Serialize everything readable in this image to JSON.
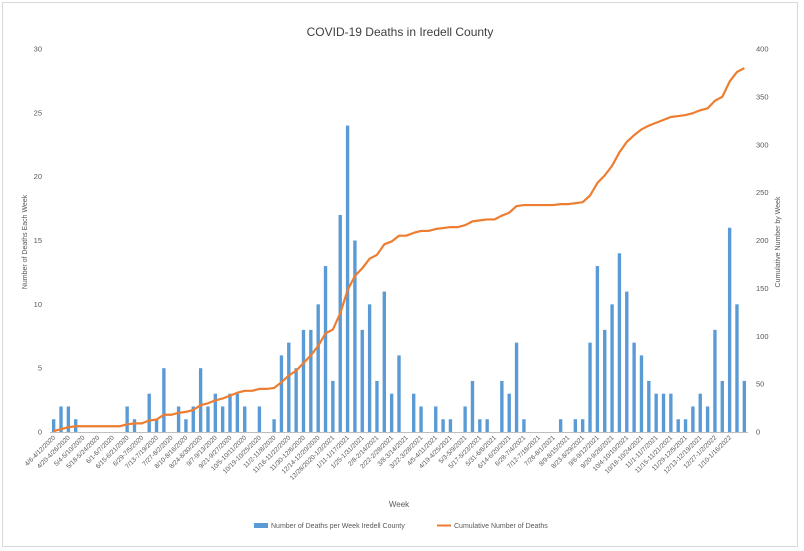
{
  "chart_data": {
    "type": "bar+line",
    "title": "COVID-19 Deaths in Iredell County",
    "xlabel": "Week",
    "ylabel_left": "Number of Deaths Each Week",
    "ylabel_right": "Cumulative Number by Week",
    "ylim_left": [
      0,
      30
    ],
    "ylim_right": [
      0,
      400
    ],
    "yticks_left": [
      "0",
      "5",
      "10",
      "15",
      "20",
      "25",
      "30"
    ],
    "yticks_right": [
      "0",
      "50",
      "100",
      "150",
      "200",
      "250",
      "300",
      "350",
      "400"
    ],
    "grid": false,
    "legend_position": "bottom",
    "x_tick_labels": [
      "4/6-4/12/2020",
      "4/20-4/26/2020",
      "5/4-5/10/2020",
      "5/18-5/24/2020",
      "6/1-6/7/2020",
      "6/15-6/21/2020",
      "6/29-7/5/2020",
      "7/13-7/19/2020",
      "7/27-8/2/2020",
      "8/10-8/16/2020",
      "8/24-8/30/2020",
      "9/7-9/13/2020",
      "9/21-9/27/2020",
      "10/5-10/11/2020",
      "10/19-10/25/2020",
      "11/2-11/8/2020",
      "11/16-11/22/2020",
      "11/30-12/6/2020",
      "12/14-12/20/2020",
      "12/28/2020-1/3/2021",
      "1/11-1/17/2021",
      "1/25-1/31/2021",
      "2/8-2/14/2021",
      "2/22-2/28/2021",
      "3/8-3/14/2021",
      "3/22-3/28/2021",
      "4/5-4/11/2021",
      "4/19-4/25/2021",
      "5/3-5/9/2021",
      "5/17-5/23/2021",
      "5/31-6/6/2021",
      "6/14-6/20/2021",
      "6/28-7/4/2021",
      "7/12-7/18/2021",
      "7/26-8/1/2021",
      "8/9-8/15/2021",
      "8/23-8/29/2021",
      "9/6-9/12/2021",
      "9/20-9/26/2021",
      "10/4-10/10/2021",
      "10/18-10/24/2021",
      "11/1-11/7/2021",
      "11/15-11/21/2021",
      "11/29-12/5/2021",
      "12/13-12/19/2021",
      "12/27-1/2/2022",
      "1/10-1/16/2022"
    ],
    "series": [
      {
        "name": "Number of Deaths per Week Iredell County",
        "type": "bar",
        "color": "#5b9bd5",
        "axis": "left",
        "values": [
          1,
          2,
          2,
          1,
          0,
          0,
          0,
          0,
          0,
          0,
          2,
          1,
          0,
          3,
          1,
          5,
          0,
          2,
          1,
          2,
          5,
          2,
          3,
          2,
          3,
          3,
          2,
          0,
          2,
          0,
          1,
          6,
          7,
          5,
          8,
          8,
          10,
          13,
          4,
          17,
          24,
          15,
          8,
          10,
          4,
          11,
          3,
          6,
          0,
          3,
          2,
          0,
          2,
          1,
          1,
          0,
          2,
          4,
          1,
          1,
          0,
          4,
          3,
          7,
          1,
          0,
          0,
          0,
          0,
          1,
          0,
          1,
          1,
          7,
          13,
          8,
          10,
          14,
          11,
          7,
          6,
          4,
          3,
          3,
          3,
          1,
          1,
          2,
          3,
          2,
          8,
          4,
          16,
          10,
          4
        ]
      },
      {
        "name": "Cumulative Number of Deaths",
        "type": "line",
        "color": "#ed7d31",
        "axis": "right",
        "values": [
          1,
          3,
          5,
          6,
          6,
          6,
          6,
          6,
          6,
          6,
          8,
          9,
          9,
          12,
          13,
          18,
          18,
          20,
          21,
          23,
          28,
          30,
          33,
          35,
          38,
          41,
          43,
          43,
          45,
          45,
          46,
          52,
          59,
          64,
          72,
          80,
          90,
          103,
          107,
          124,
          148,
          163,
          171,
          181,
          185,
          196,
          199,
          205,
          205,
          208,
          210,
          210,
          212,
          213,
          214,
          214,
          216,
          220,
          221,
          222,
          222,
          226,
          229,
          236,
          237,
          237,
          237,
          237,
          237,
          238,
          238,
          239,
          240,
          247,
          260,
          268,
          278,
          292,
          303,
          310,
          316,
          320,
          323,
          326,
          329,
          330,
          331,
          333,
          336,
          338,
          346,
          350,
          366,
          376,
          380
        ]
      }
    ]
  }
}
